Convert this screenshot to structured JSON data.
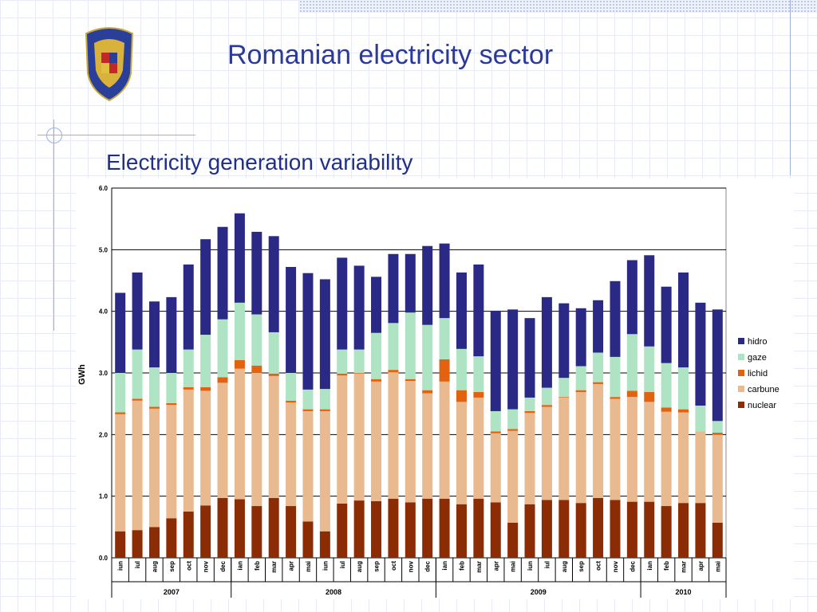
{
  "slide": {
    "title": "Romanian electricity sector",
    "subtitle": "Electricity generation variability",
    "logo": "coat-of-arms-of-romania"
  },
  "chart_data": {
    "type": "bar",
    "stacked": true,
    "ylabel": "GWh",
    "ylim": [
      0,
      6
    ],
    "yticks": [
      "0.0",
      "1.0",
      "2.0",
      "3.0",
      "4.0",
      "5.0",
      "6.0"
    ],
    "grid": true,
    "legend_position": "right",
    "categories": [
      "iun",
      "iul",
      "aug",
      "sep",
      "oct",
      "nov",
      "dec",
      "ian",
      "feb",
      "mar",
      "apr",
      "mai",
      "iun",
      "iul",
      "aug",
      "sep",
      "oct",
      "nov",
      "dec",
      "ian",
      "feb",
      "mar",
      "apr",
      "mai",
      "iun",
      "iul",
      "aug",
      "sep",
      "oct",
      "nov",
      "dec",
      "ian",
      "feb",
      "mar",
      "apr",
      "mai"
    ],
    "years": [
      {
        "label": "2007",
        "count": 7
      },
      {
        "label": "2008",
        "count": 12
      },
      {
        "label": "2009",
        "count": 12
      },
      {
        "label": "2010",
        "count": 5
      }
    ],
    "series": [
      {
        "name": "nuclear",
        "color": "#8b2c05",
        "values": [
          0.43,
          0.45,
          0.5,
          0.64,
          0.75,
          0.85,
          0.97,
          0.95,
          0.84,
          0.97,
          0.84,
          0.59,
          0.43,
          0.88,
          0.93,
          0.92,
          0.96,
          0.9,
          0.96,
          0.96,
          0.87,
          0.96,
          0.9,
          0.57,
          0.87,
          0.94,
          0.94,
          0.89,
          0.97,
          0.94,
          0.91,
          0.91,
          0.84,
          0.89,
          0.89,
          0.57
        ]
      },
      {
        "name": "carbune",
        "color": "#e9b98f",
        "values": [
          1.9,
          2.1,
          1.92,
          1.84,
          1.98,
          1.86,
          1.87,
          2.12,
          2.16,
          1.98,
          1.68,
          1.79,
          1.95,
          2.08,
          2.06,
          1.94,
          2.05,
          1.97,
          1.71,
          1.9,
          1.66,
          1.64,
          1.12,
          1.49,
          1.48,
          1.51,
          1.66,
          1.8,
          1.85,
          1.64,
          1.7,
          1.62,
          1.53,
          1.47,
          1.16,
          1.43
        ]
      },
      {
        "name": "lichid",
        "color": "#e2620f",
        "values": [
          0.03,
          0.03,
          0.03,
          0.03,
          0.04,
          0.06,
          0.09,
          0.14,
          0.12,
          0.04,
          0.03,
          0.03,
          0.03,
          0.03,
          0.01,
          0.04,
          0.04,
          0.03,
          0.05,
          0.36,
          0.19,
          0.09,
          0.03,
          0.03,
          0.03,
          0.03,
          0.01,
          0.03,
          0.03,
          0.03,
          0.1,
          0.16,
          0.07,
          0.05,
          0.0,
          0.03
        ]
      },
      {
        "name": "gaze",
        "color": "#aee3c4",
        "values": [
          0.64,
          0.8,
          0.64,
          0.49,
          0.61,
          0.85,
          0.94,
          0.93,
          0.83,
          0.67,
          0.45,
          0.32,
          0.33,
          0.39,
          0.38,
          0.75,
          0.76,
          1.08,
          1.06,
          0.67,
          0.67,
          0.58,
          0.33,
          0.32,
          0.22,
          0.28,
          0.31,
          0.39,
          0.48,
          0.65,
          0.92,
          0.74,
          0.72,
          0.68,
          0.42,
          0.19
        ]
      },
      {
        "name": "hidro",
        "color": "#2a2a86",
        "values": [
          1.3,
          1.25,
          1.07,
          1.23,
          1.38,
          1.55,
          1.5,
          1.45,
          1.34,
          1.56,
          1.72,
          1.89,
          1.78,
          1.49,
          1.36,
          0.91,
          1.12,
          0.95,
          1.28,
          1.21,
          1.24,
          1.49,
          1.63,
          1.62,
          1.29,
          1.47,
          1.21,
          0.94,
          0.85,
          1.23,
          1.2,
          1.48,
          1.24,
          1.54,
          1.67,
          1.81
        ]
      }
    ]
  }
}
